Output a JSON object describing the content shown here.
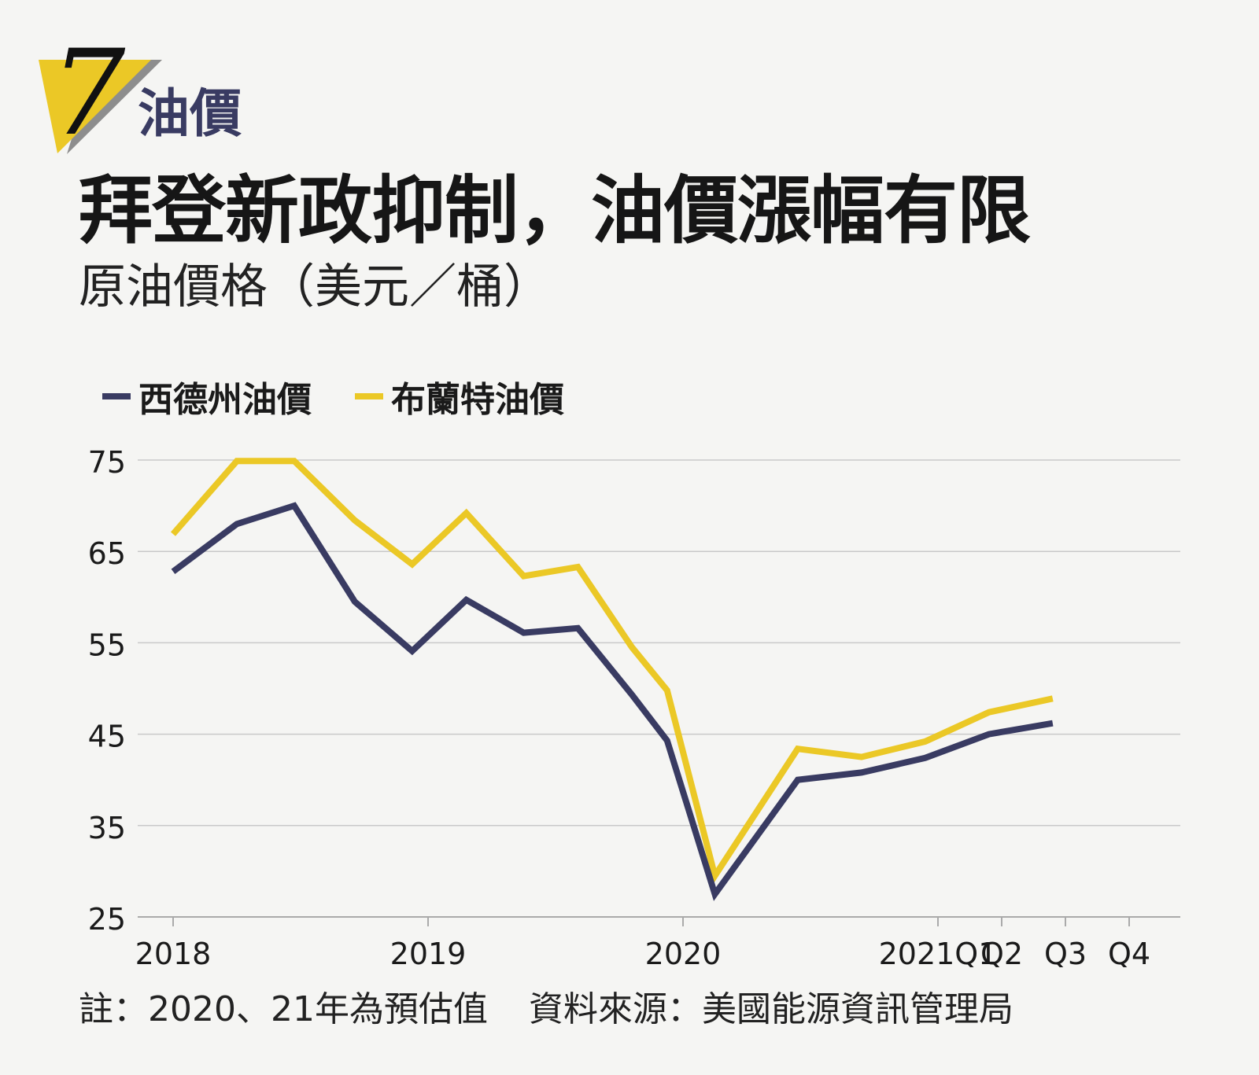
{
  "badge": {
    "number": "7",
    "colors": {
      "triangle": "#ebc826",
      "shadow": "#8d8d8d"
    }
  },
  "section_label": "油價",
  "headline": "拜登新政抑制，油價漲幅有限",
  "subtitle": "原油價格（美元／桶）",
  "legend": [
    {
      "label": "西德州油價",
      "color": "#393b62"
    },
    {
      "label": "布蘭特油價",
      "color": "#ebc826"
    }
  ],
  "footnote": {
    "note": "註：2020、21年為預估值",
    "source": "資料來源：美國能源資訊管理局"
  },
  "chart_data": {
    "type": "line",
    "title": "原油價格（美元／桶）",
    "xlabel": "",
    "ylabel": "",
    "ylim": [
      25,
      75
    ],
    "yticks": [
      25,
      35,
      45,
      55,
      65,
      75
    ],
    "grid": true,
    "legend_position": "top-left",
    "x": [
      "2018 Q1",
      "2018 Q2",
      "2018 Q3",
      "2018 Q4",
      "2019 Q1",
      "2019 Q2",
      "2019 Q3",
      "2019 Q4",
      "2020 Q1",
      "2020 Q2",
      "2020 Q3",
      "2020 Q4",
      "2021 Q1",
      "2021 Q2",
      "2021 Q3",
      "2021 Q4"
    ],
    "x_tick_labels": [
      {
        "index": 0,
        "label": "2018"
      },
      {
        "index": 4,
        "label": "2019"
      },
      {
        "index": 8,
        "label": "2020"
      },
      {
        "index": 12,
        "label": "2021Q1"
      },
      {
        "index": 13,
        "label": "Q2"
      },
      {
        "index": 14,
        "label": "Q3"
      },
      {
        "index": 15,
        "label": "Q4"
      }
    ],
    "series": [
      {
        "name": "西德州油價",
        "color": "#393b62",
        "values": [
          [
            0,
            62.8
          ],
          [
            1,
            68.0
          ],
          [
            1.9,
            70.0
          ],
          [
            2.85,
            59.5
          ],
          [
            3.75,
            54.1
          ],
          [
            4.6,
            59.7
          ],
          [
            5.5,
            56.1
          ],
          [
            6.35,
            56.6
          ],
          [
            7.2,
            49.3
          ],
          [
            7.75,
            44.3
          ],
          [
            8.5,
            27.5
          ],
          [
            9.8,
            40.0
          ],
          [
            10.8,
            40.8
          ],
          [
            11.8,
            42.4
          ],
          [
            12.8,
            45.0
          ],
          [
            13.8,
            46.2
          ]
        ]
      },
      {
        "name": "布蘭特油價",
        "color": "#ebc826",
        "values": [
          [
            0,
            66.9
          ],
          [
            1,
            74.9
          ],
          [
            1.9,
            74.9
          ],
          [
            2.85,
            68.4
          ],
          [
            3.75,
            63.6
          ],
          [
            4.6,
            69.2
          ],
          [
            5.5,
            62.3
          ],
          [
            6.35,
            63.3
          ],
          [
            7.2,
            54.5
          ],
          [
            7.75,
            49.8
          ],
          [
            8.5,
            29.5
          ],
          [
            9.8,
            43.4
          ],
          [
            10.8,
            42.5
          ],
          [
            11.8,
            44.2
          ],
          [
            12.8,
            47.4
          ],
          [
            13.8,
            48.9
          ]
        ]
      }
    ]
  }
}
